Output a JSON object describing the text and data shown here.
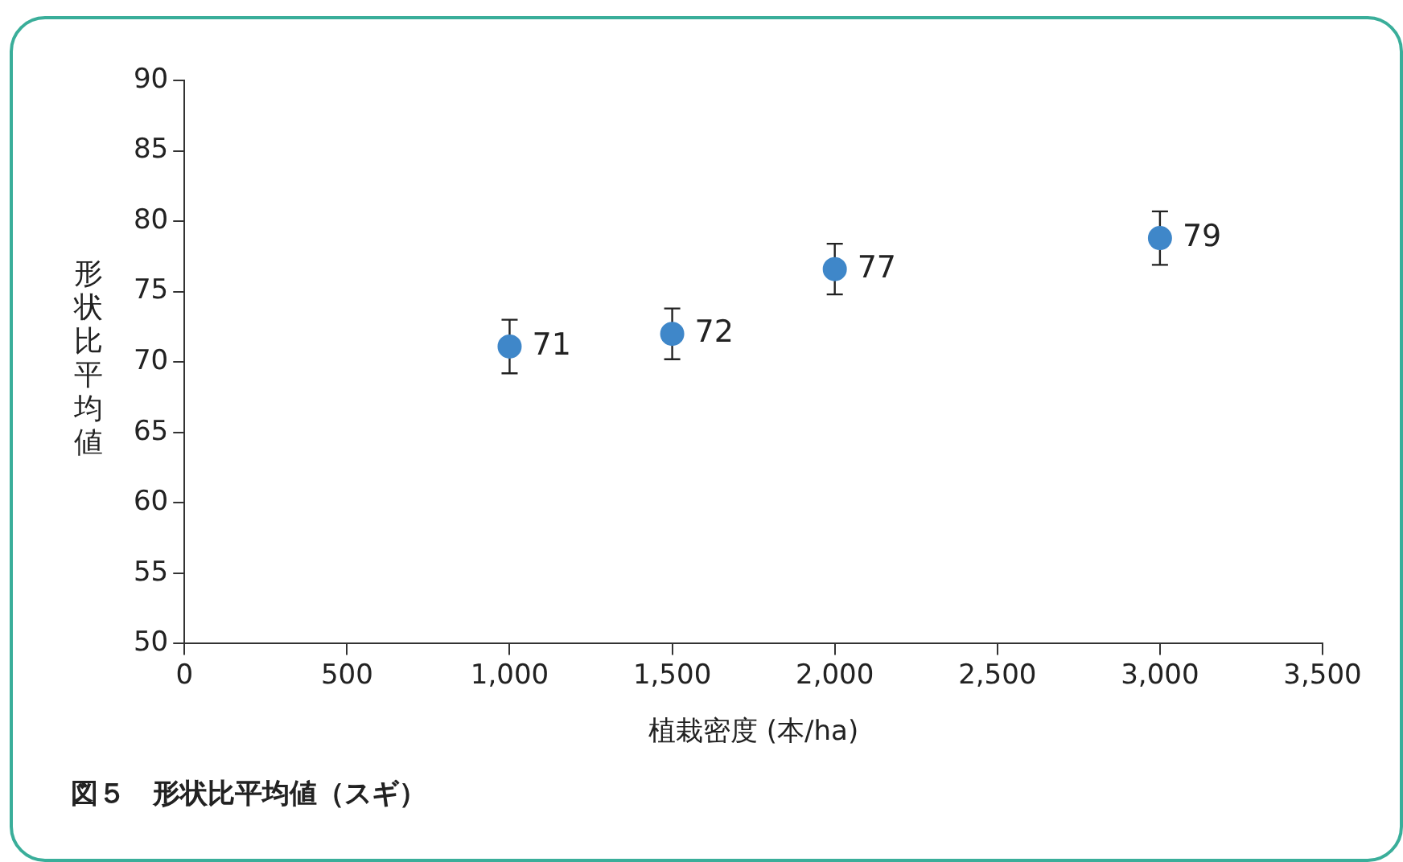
{
  "chart_data": {
    "type": "scatter",
    "ylabel": "形状比平均値",
    "xlabel": "植栽密度 (本/ha)",
    "annotations": [
      "図５　形状比平均値（スギ）"
    ],
    "x": [
      1000,
      1500,
      2000,
      3000
    ],
    "series": [
      {
        "color": "#3f87c9",
        "values": [
          71.1,
          72.0,
          76.6,
          78.8
        ],
        "errors": [
          1.9,
          1.8,
          1.8,
          1.9
        ],
        "value_labels": [
          "71",
          "72",
          "77",
          "79"
        ]
      }
    ],
    "xlim": [
      0,
      3500
    ],
    "xticks": [
      {
        "value": 0,
        "label": "0"
      },
      {
        "value": 500,
        "label": "500"
      },
      {
        "value": 1000,
        "label": "1,000"
      },
      {
        "value": 1500,
        "label": "1,500"
      },
      {
        "value": 2000,
        "label": "2,000"
      },
      {
        "value": 2500,
        "label": "2,500"
      },
      {
        "value": 3000,
        "label": "3,000"
      },
      {
        "value": 3500,
        "label": "3,500"
      }
    ],
    "ylim": [
      50,
      90
    ],
    "yticks": [
      50,
      55,
      60,
      65,
      70,
      75,
      80,
      85,
      90
    ],
    "grid": false,
    "legend": false,
    "marker": "circle"
  }
}
